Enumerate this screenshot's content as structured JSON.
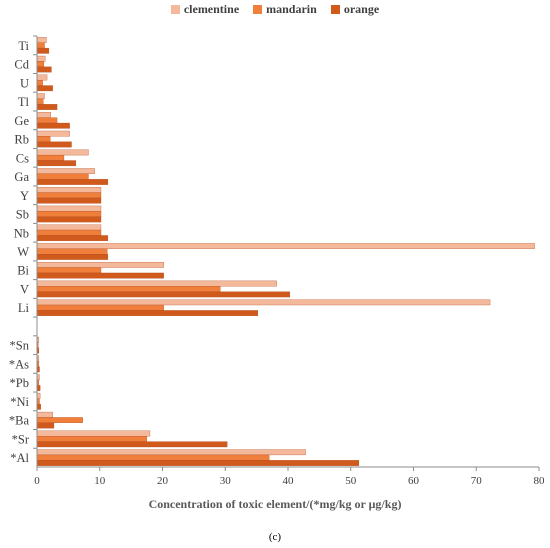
{
  "chart_data": {
    "type": "bar",
    "orientation": "horizontal",
    "xlabel": "Concentration of toxic element/(*mg/kg or μg/kg)",
    "xlim": [
      0,
      80
    ],
    "xticks": [
      0,
      10,
      20,
      30,
      40,
      50,
      60,
      70,
      80
    ],
    "grid": false,
    "legend_position": "top",
    "categories_top_to_bottom": [
      "Ti",
      "Cd",
      "U",
      "Tl",
      "Ge",
      "Rb",
      "Cs",
      "Ga",
      "Y",
      "Sb",
      "Nb",
      "W",
      "Bi",
      "V",
      "Li",
      "",
      "*Sn",
      "*As",
      "*Pb",
      "*Ni",
      "*Ba",
      "*Sr",
      "*Al"
    ],
    "series": [
      {
        "name": "clementine",
        "color": "#f4b89a",
        "values": [
          1.5,
          1.3,
          1.6,
          1.2,
          2.2,
          5.2,
          8.2,
          9.2,
          10.2,
          10.2,
          10.2,
          79.3,
          20.2,
          38.2,
          72.2,
          null,
          0.3,
          0.3,
          0.4,
          0.5,
          2.5,
          18.0,
          42.8
        ]
      },
      {
        "name": "mandarin",
        "color": "#f07f3c",
        "values": [
          1.2,
          1.1,
          0.9,
          1.0,
          3.2,
          2.1,
          4.3,
          8.2,
          10.2,
          10.2,
          10.2,
          11.2,
          10.2,
          29.2,
          20.2,
          null,
          0.2,
          0.3,
          0.3,
          0.4,
          7.3,
          17.5,
          37.0
        ]
      },
      {
        "name": "orange",
        "color": "#d05a1c",
        "values": [
          1.9,
          2.3,
          2.5,
          3.2,
          5.2,
          5.5,
          6.2,
          11.3,
          10.2,
          10.2,
          11.3,
          11.3,
          20.2,
          40.3,
          35.2,
          null,
          0.3,
          0.4,
          0.5,
          0.6,
          2.7,
          30.3,
          51.3
        ]
      }
    ]
  },
  "caption": "(c)"
}
